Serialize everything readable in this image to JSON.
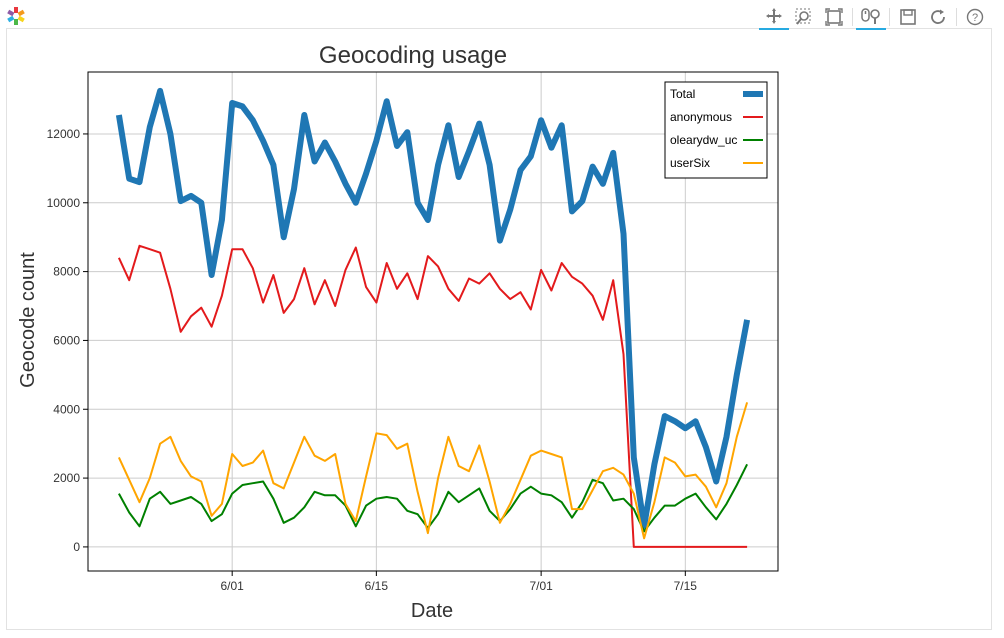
{
  "toolbar": {
    "tools": [
      "pan-icon",
      "box-zoom-icon",
      "zoom-fit-icon",
      "wheel-zoom-icon",
      "save-icon",
      "reset-icon",
      "help-icon"
    ]
  },
  "colors": {
    "total": "#1f77b4",
    "anonymous": "#e31a1c",
    "olearydw_uc": "#008000",
    "userSix": "#ffa500",
    "toolbar_active": "#26aae1"
  },
  "chart_data": {
    "type": "line",
    "title": "Geocoding usage",
    "xlabel": "Date",
    "ylabel": "Geocode count",
    "x_ticks": [
      {
        "label": "6/01",
        "day": 31
      },
      {
        "label": "6/15",
        "day": 45
      },
      {
        "label": "7/01",
        "day": 61
      },
      {
        "label": "7/15",
        "day": 75
      }
    ],
    "y_ticks": [
      0,
      2000,
      4000,
      6000,
      8000,
      10000,
      12000
    ],
    "xlim": [
      "2014-05-18",
      "2014-07-29"
    ],
    "ylim": [
      -700,
      13800
    ],
    "grid": true,
    "legend_position": "top-right",
    "x": [
      20,
      21,
      22,
      23,
      24,
      25,
      26,
      27,
      28,
      29,
      30,
      31,
      32,
      33,
      34,
      35,
      36,
      37,
      38,
      39,
      40,
      41,
      42,
      43,
      44,
      45,
      46,
      47,
      48,
      49,
      50,
      51,
      52,
      53,
      54,
      55,
      56,
      57,
      58,
      59,
      60,
      61,
      62,
      63,
      64,
      65,
      66,
      67,
      68,
      69,
      70,
      71,
      72,
      73,
      74,
      75,
      76,
      77,
      78,
      79,
      80,
      81
    ],
    "series": [
      {
        "name": "Total",
        "key": "total",
        "width": 6,
        "values": [
          12550,
          10700,
          10600,
          12200,
          13250,
          12000,
          10050,
          10200,
          10000,
          7900,
          9500,
          12900,
          12800,
          12400,
          11800,
          11100,
          9000,
          10400,
          12550,
          11200,
          11750,
          11200,
          10550,
          10000,
          10850,
          11800,
          12950,
          11650,
          12050,
          10000,
          9500,
          11100,
          12250,
          10750,
          11500,
          12300,
          11100,
          8900,
          9800,
          10950,
          11350,
          12400,
          11600,
          12250,
          9750,
          10050,
          11050,
          10550,
          11450,
          9100,
          2600,
          600,
          2400,
          3800,
          3650,
          3450,
          3650,
          2900,
          1900,
          3200,
          5000,
          6600
        ]
      },
      {
        "name": "anonymous",
        "key": "anonymous",
        "width": 2,
        "values": [
          8400,
          7750,
          8750,
          8650,
          8550,
          7500,
          6250,
          6700,
          6950,
          6400,
          7300,
          8650,
          8650,
          8100,
          7100,
          7900,
          6800,
          7200,
          8100,
          7050,
          7750,
          7000,
          8050,
          8700,
          7550,
          7100,
          8250,
          7500,
          7950,
          7200,
          8450,
          8150,
          7500,
          7150,
          7800,
          7650,
          7950,
          7500,
          7200,
          7400,
          6900,
          8050,
          7450,
          8250,
          7850,
          7650,
          7300,
          6600,
          7750,
          5600,
          0,
          0,
          0,
          0,
          0,
          0,
          0,
          0,
          0,
          0,
          0,
          0
        ]
      },
      {
        "name": "olearydw_uc",
        "key": "olearydw_uc",
        "width": 2,
        "values": [
          1550,
          1000,
          600,
          1400,
          1600,
          1250,
          1350,
          1450,
          1250,
          750,
          950,
          1550,
          1800,
          1850,
          1900,
          1400,
          700,
          850,
          1150,
          1600,
          1500,
          1500,
          1200,
          600,
          1200,
          1400,
          1450,
          1400,
          1050,
          950,
          550,
          950,
          1600,
          1300,
          1500,
          1700,
          1050,
          750,
          1100,
          1550,
          1750,
          1550,
          1500,
          1300,
          850,
          1300,
          1950,
          1850,
          1350,
          1400,
          1100,
          450,
          850,
          1200,
          1200,
          1400,
          1550,
          1150,
          800,
          1250,
          1800,
          2400
        ]
      },
      {
        "name": "userSix",
        "key": "userSix",
        "width": 2,
        "values": [
          2600,
          1950,
          1300,
          2000,
          3000,
          3200,
          2500,
          2050,
          1900,
          900,
          1250,
          2700,
          2350,
          2450,
          2800,
          1850,
          1700,
          2450,
          3200,
          2650,
          2500,
          2700,
          1250,
          750,
          2050,
          3300,
          3250,
          2850,
          3000,
          1600,
          400,
          2000,
          3200,
          2350,
          2200,
          2950,
          1900,
          700,
          1250,
          1950,
          2650,
          2800,
          2700,
          2600,
          1100,
          1100,
          1650,
          2200,
          2300,
          2100,
          1550,
          250,
          1300,
          2600,
          2450,
          2050,
          2100,
          1750,
          1150,
          1850,
          3200,
          4200
        ]
      }
    ]
  }
}
